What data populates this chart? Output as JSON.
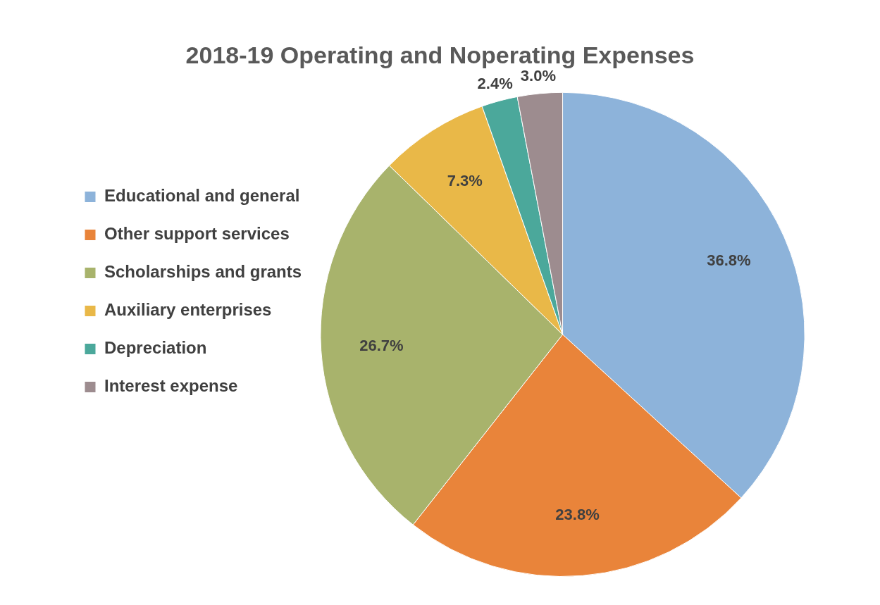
{
  "chart_data": {
    "type": "pie",
    "title": "2018-19 Operating and Noperating Expenses",
    "categories": [
      "Educational and general",
      "Other support services",
      "Scholarships and grants",
      "Auxiliary enterprises",
      "Depreciation",
      "Interest expense"
    ],
    "values": [
      36.8,
      23.8,
      26.7,
      7.3,
      2.4,
      3.0
    ],
    "colors": [
      "#8db3da",
      "#e9843a",
      "#a8b36c",
      "#e9b848",
      "#4ba89b",
      "#9d8c8f"
    ],
    "value_labels": [
      "36.8%",
      "23.8%",
      "26.7%",
      "7.3%",
      "2.4%",
      "3.0%"
    ],
    "legend": "left"
  }
}
